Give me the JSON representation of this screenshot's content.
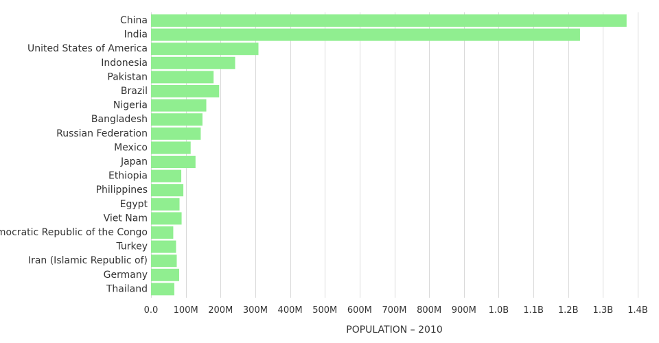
{
  "chart_data": {
    "type": "bar",
    "orientation": "horizontal",
    "title": "",
    "xlabel": "POPULATION – 2010",
    "ylabel": "",
    "categories": [
      "China",
      "India",
      "United States of America",
      "Indonesia",
      "Pakistan",
      "Brazil",
      "Nigeria",
      "Bangladesh",
      "Russian Federation",
      "Mexico",
      "Japan",
      "Ethiopia",
      "Philippines",
      "Egypt",
      "Viet Nam",
      "Democratic Republic of the Congo",
      "Turkey",
      "Iran (Islamic Republic of)",
      "Germany",
      "Thailand"
    ],
    "values": [
      1368000000,
      1234000000,
      309000000,
      242000000,
      180000000,
      196000000,
      159000000,
      148000000,
      143000000,
      114000000,
      128000000,
      87000000,
      93000000,
      82000000,
      88000000,
      64000000,
      72000000,
      74000000,
      81000000,
      67000000
    ],
    "xlim": [
      0,
      1400000000
    ],
    "x_ticks": [
      0,
      100000000,
      200000000,
      300000000,
      400000000,
      500000000,
      600000000,
      700000000,
      800000000,
      900000000,
      1000000000,
      1100000000,
      1200000000,
      1300000000,
      1400000000
    ],
    "x_tick_labels": [
      "0.0",
      "100M",
      "200M",
      "300M",
      "400M",
      "500M",
      "600M",
      "700M",
      "800M",
      "900M",
      "1.0B",
      "1.1B",
      "1.2B",
      "1.3B",
      "1.4B"
    ],
    "grid": "vertical",
    "legend": "none",
    "colors": {
      "bar": "#90ee90",
      "grid": "#d9d9d9",
      "text": "#333333"
    }
  }
}
